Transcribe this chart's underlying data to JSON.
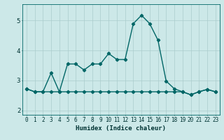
{
  "title": "",
  "xlabel": "Humidex (Indice chaleur)",
  "ylabel": "",
  "background_color": "#cce8e8",
  "line_color": "#006666",
  "grid_color": "#aacccc",
  "x_values": [
    0,
    1,
    2,
    3,
    4,
    5,
    6,
    7,
    8,
    9,
    10,
    11,
    12,
    13,
    14,
    15,
    16,
    17,
    18,
    19,
    20,
    21,
    22,
    23
  ],
  "y_values": [
    2.72,
    2.62,
    2.62,
    3.25,
    2.62,
    3.55,
    3.55,
    3.35,
    3.55,
    3.55,
    3.9,
    3.7,
    3.7,
    4.9,
    5.18,
    4.9,
    4.35,
    2.98,
    2.72,
    2.62,
    2.52,
    2.62,
    2.7,
    2.62
  ],
  "y2_values": [
    2.72,
    2.62,
    2.62,
    2.62,
    2.62,
    2.62,
    2.62,
    2.62,
    2.62,
    2.62,
    2.62,
    2.62,
    2.62,
    2.62,
    2.62,
    2.62,
    2.62,
    2.62,
    2.62,
    2.62,
    2.52,
    2.62,
    2.7,
    2.62
  ],
  "xlim": [
    -0.5,
    23.5
  ],
  "ylim": [
    1.85,
    5.55
  ],
  "yticks": [
    2,
    3,
    4,
    5
  ],
  "xticks": [
    0,
    1,
    2,
    3,
    4,
    5,
    6,
    7,
    8,
    9,
    10,
    11,
    12,
    13,
    14,
    15,
    16,
    17,
    18,
    19,
    20,
    21,
    22,
    23
  ],
  "marker": "D",
  "markersize": 2.2,
  "linewidth": 1.0
}
